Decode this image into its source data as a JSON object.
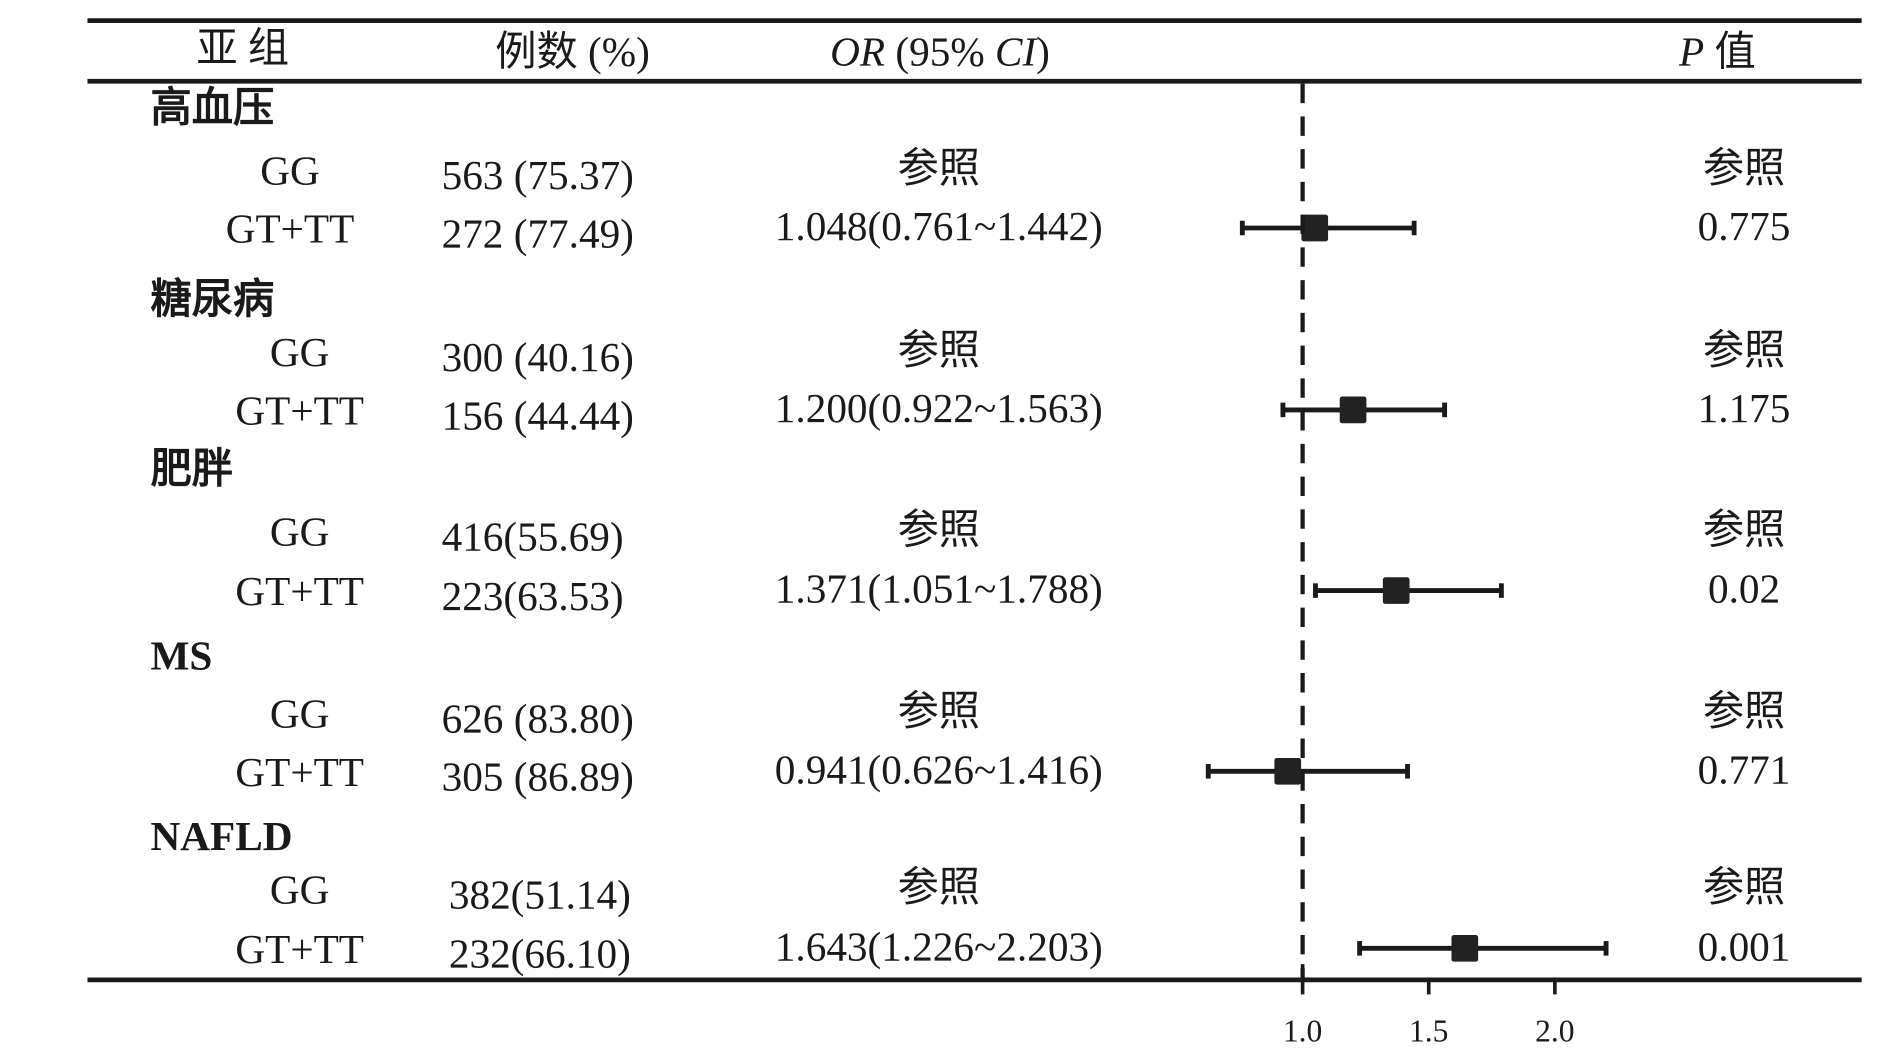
{
  "chart_data": {
    "type": "forest",
    "title": "",
    "headers": {
      "subgroup": "亚 组",
      "cases": "例数 (%)",
      "or_italic": "OR",
      "or_mid": " (95% ",
      "ci_italic": "CI",
      "or_end": ")",
      "p_italic": "P",
      "p_rest": " 值"
    },
    "reference_line": 1.0,
    "xlim": [
      0.76,
      2.35
    ],
    "xticks": [
      "1.0",
      "1.5",
      "2.0"
    ],
    "xtick_values": [
      1.0,
      1.5,
      2.0
    ],
    "groups": [
      {
        "name": "高血压",
        "rows": [
          {
            "genotype": "GG",
            "cases": "563 (75.37)",
            "or_text": "参照",
            "p": "参照"
          },
          {
            "genotype": "GT+TT",
            "cases": "272 (77.49)",
            "or_text": "1.048(0.761~1.442)",
            "p": "0.775",
            "or": 1.048,
            "lo": 0.761,
            "hi": 1.442
          }
        ]
      },
      {
        "name": "糖尿病",
        "rows": [
          {
            "genotype": "GG",
            "cases": "300 (40.16)",
            "or_text": "参照",
            "p": "参照"
          },
          {
            "genotype": "GT+TT",
            "cases": "156 (44.44)",
            "or_text": "1.200(0.922~1.563)",
            "p": "1.175",
            "or": 1.2,
            "lo": 0.922,
            "hi": 1.563
          }
        ]
      },
      {
        "name": "肥胖",
        "rows": [
          {
            "genotype": "GG",
            "cases": "416(55.69)",
            "or_text": "参照",
            "p": "参照"
          },
          {
            "genotype": "GT+TT",
            "cases": "223(63.53)",
            "or_text": "1.371(1.051~1.788)",
            "p": "0.02",
            "or": 1.371,
            "lo": 1.051,
            "hi": 1.788
          }
        ]
      },
      {
        "name": "MS",
        "rows": [
          {
            "genotype": "GG",
            "cases": "626 (83.80)",
            "or_text": "参照",
            "p": "参照"
          },
          {
            "genotype": "GT+TT",
            "cases": "305 (86.89)",
            "or_text": "0.941(0.626~1.416)",
            "p": "0.771",
            "or": 0.941,
            "lo": 0.626,
            "hi": 1.416
          }
        ]
      },
      {
        "name": "NAFLD",
        "rows": [
          {
            "genotype": "GG",
            "cases": "382(51.14)",
            "or_text": "参照",
            "p": "参照"
          },
          {
            "genotype": "GT+TT",
            "cases": "232(66.10)",
            "or_text": "1.643(1.226~2.203)",
            "p": "0.001",
            "or": 1.643,
            "lo": 1.226,
            "hi": 2.203
          }
        ]
      }
    ],
    "colors": {
      "ink": "#1a1a1a",
      "marker": "#222222"
    }
  }
}
